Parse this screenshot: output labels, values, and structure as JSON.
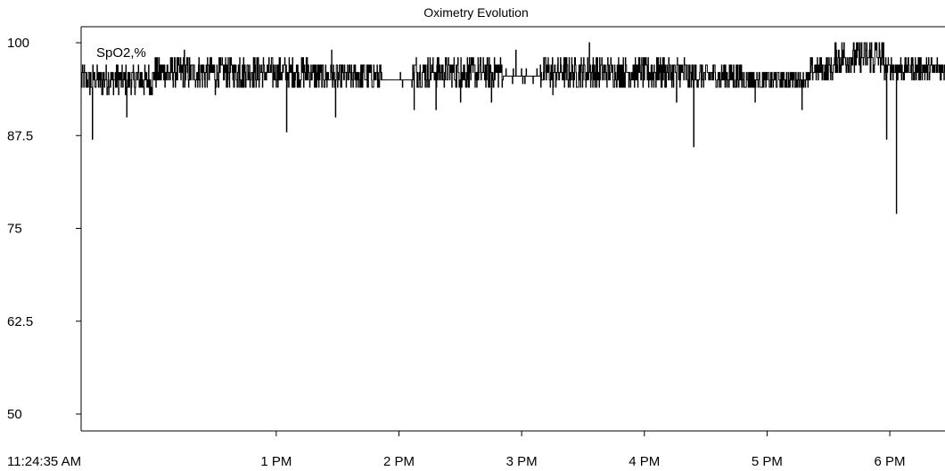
{
  "chart_data": {
    "type": "line",
    "title": "Oximetry Evolution",
    "series_label": "SpO2,%",
    "ylim": [
      50,
      100
    ],
    "yticks": [
      {
        "value": 100,
        "label": "100"
      },
      {
        "value": 87.5,
        "label": "87.5"
      },
      {
        "value": 75,
        "label": "75"
      },
      {
        "value": 62.5,
        "label": "62.5"
      },
      {
        "value": 50,
        "label": "50"
      }
    ],
    "xlim_hours": [
      11.41,
      18.45
    ],
    "xticks": [
      {
        "hour": 11.41,
        "label": "11:24:35 AM",
        "tick": false
      },
      {
        "hour": 13,
        "label": "1 PM",
        "tick": true
      },
      {
        "hour": 14,
        "label": "2 PM",
        "tick": true
      },
      {
        "hour": 15,
        "label": "3 PM",
        "tick": true
      },
      {
        "hour": 16,
        "label": "4 PM",
        "tick": true
      },
      {
        "hour": 17,
        "label": "5 PM",
        "tick": true
      },
      {
        "hour": 18,
        "label": "6 PM",
        "tick": true
      }
    ],
    "grid": false,
    "line_color": "#000000",
    "baseline_segments": [
      {
        "start": 11.41,
        "end": 12.0,
        "base": 95,
        "noise": 2
      },
      {
        "start": 12.0,
        "end": 13.3,
        "base": 96,
        "noise": 2
      },
      {
        "start": 13.3,
        "end": 13.85,
        "base": 95.5,
        "noise": 2
      },
      {
        "start": 13.85,
        "end": 14.1,
        "base": 95,
        "noise": 0.4
      },
      {
        "start": 14.1,
        "end": 14.85,
        "base": 96,
        "noise": 2
      },
      {
        "start": 14.85,
        "end": 15.15,
        "base": 95.5,
        "noise": 0.6
      },
      {
        "start": 15.15,
        "end": 16.35,
        "base": 96,
        "noise": 2
      },
      {
        "start": 16.35,
        "end": 16.8,
        "base": 95.5,
        "noise": 2
      },
      {
        "start": 16.8,
        "end": 17.35,
        "base": 95,
        "noise": 1.5
      },
      {
        "start": 17.35,
        "end": 17.55,
        "base": 96.5,
        "noise": 1.5
      },
      {
        "start": 17.55,
        "end": 17.95,
        "base": 98,
        "noise": 2.5
      },
      {
        "start": 17.95,
        "end": 18.45,
        "base": 96.5,
        "noise": 1.5
      }
    ],
    "dips": [
      {
        "hour": 11.5,
        "value": 87
      },
      {
        "hour": 11.78,
        "value": 90
      },
      {
        "hour": 12.5,
        "value": 93
      },
      {
        "hour": 13.08,
        "value": 88
      },
      {
        "hour": 13.48,
        "value": 90
      },
      {
        "hour": 14.12,
        "value": 91
      },
      {
        "hour": 14.3,
        "value": 91
      },
      {
        "hour": 14.5,
        "value": 92
      },
      {
        "hour": 14.75,
        "value": 92
      },
      {
        "hour": 15.25,
        "value": 93
      },
      {
        "hour": 16.26,
        "value": 92
      },
      {
        "hour": 16.4,
        "value": 86
      },
      {
        "hour": 16.9,
        "value": 92
      },
      {
        "hour": 17.28,
        "value": 91
      },
      {
        "hour": 17.97,
        "value": 87
      },
      {
        "hour": 18.05,
        "value": 77
      }
    ],
    "peaks": [
      {
        "hour": 12.25,
        "value": 99
      },
      {
        "hour": 12.7,
        "value": 98
      },
      {
        "hour": 13.25,
        "value": 98
      },
      {
        "hour": 13.45,
        "value": 99
      },
      {
        "hour": 14.5,
        "value": 98
      },
      {
        "hour": 14.95,
        "value": 99
      },
      {
        "hour": 15.55,
        "value": 100
      },
      {
        "hour": 16.1,
        "value": 98
      }
    ]
  }
}
